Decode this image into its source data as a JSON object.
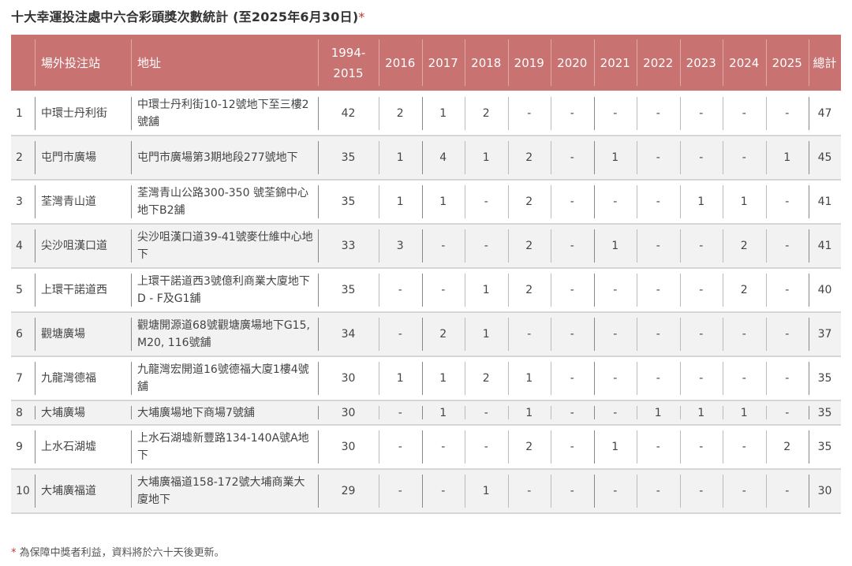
{
  "title": "十大幸運投注處中六合彩頭獎次數統計 (至2025年6月30日)",
  "title_marker": "*",
  "colors": {
    "header_bg": "#c87272",
    "header_text": "#ffffff",
    "row_alt": "#f2f2f2",
    "accent_star": "#c0392b"
  },
  "table": {
    "headers": [
      "",
      "場外投注站",
      "地址",
      "1994-2015",
      "2016",
      "2017",
      "2018",
      "2019",
      "2020",
      "2021",
      "2022",
      "2023",
      "2024",
      "2025",
      "總計"
    ],
    "rows": [
      [
        "1",
        "中環士丹利街",
        "中環士丹利街10-12號地下至三樓2號舖",
        "42",
        "2",
        "1",
        "2",
        "-",
        "-",
        "-",
        "-",
        "-",
        "-",
        "-",
        "47"
      ],
      [
        "2",
        "屯門市廣場",
        "屯門市廣場第3期地段277號地下",
        "35",
        "1",
        "4",
        "1",
        "2",
        "-",
        "1",
        "-",
        "-",
        "-",
        "1",
        "45"
      ],
      [
        "3",
        "荃灣青山道",
        "荃灣青山公路300-350 號荃錦中心地下B2舖",
        "35",
        "1",
        "1",
        "-",
        "2",
        "-",
        "-",
        "-",
        "1",
        "1",
        "-",
        "41"
      ],
      [
        "4",
        "尖沙咀漢口道",
        "尖沙咀漢口道39-41號麥仕維中心地下",
        "33",
        "3",
        "-",
        "-",
        "2",
        "-",
        "1",
        "-",
        "-",
        "2",
        "-",
        "41"
      ],
      [
        "5",
        "上環干諾道西",
        "上環干諾道西3號億利商業大廈地下D - F及G1舖",
        "35",
        "-",
        "-",
        "1",
        "2",
        "-",
        "-",
        "-",
        "-",
        "2",
        "-",
        "40"
      ],
      [
        "6",
        "觀塘廣場",
        "觀塘開源道68號觀塘廣場地下G15, M20, 116號舖",
        "34",
        "-",
        "2",
        "1",
        "-",
        "-",
        "-",
        "-",
        "-",
        "-",
        "-",
        "37"
      ],
      [
        "7",
        "九龍灣德福",
        "九龍灣宏開道16號德福大廈1樓4號舖",
        "30",
        "1",
        "1",
        "2",
        "1",
        "-",
        "-",
        "-",
        "-",
        "-",
        "-",
        "35"
      ],
      [
        "8",
        "大埔廣場",
        "大埔廣場地下商場7號舖",
        "30",
        "-",
        "1",
        "-",
        "1",
        "-",
        "-",
        "1",
        "1",
        "1",
        "-",
        "35"
      ],
      [
        "9",
        "上水石湖墟",
        "上水石湖墟新豐路134-140A號A地下",
        "30",
        "-",
        "-",
        "-",
        "2",
        "-",
        "1",
        "-",
        "-",
        "-",
        "2",
        "35"
      ],
      [
        "10",
        "大埔廣福道",
        "大埔廣福道158-172號大埔商業大廈地下",
        "29",
        "-",
        "-",
        "1",
        "-",
        "-",
        "-",
        "-",
        "-",
        "-",
        "-",
        "30"
      ]
    ]
  },
  "footer": {
    "marker": "*",
    "text": " 為保障中獎者利益，資料將於六十天後更新。"
  }
}
